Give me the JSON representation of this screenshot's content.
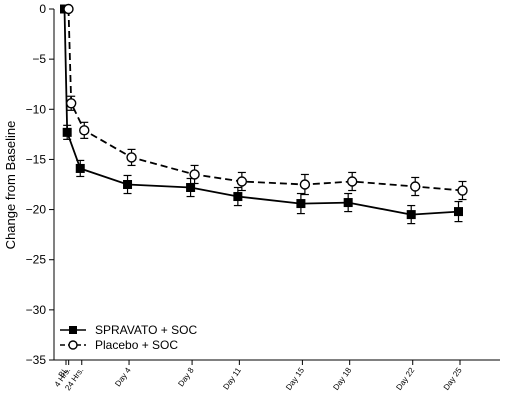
{
  "chart_data": {
    "type": "line",
    "title": "",
    "xlabel": "",
    "ylabel": "Change from Baseline",
    "ylim": [
      -35,
      0
    ],
    "yticks": [
      0,
      -5,
      -10,
      -15,
      -20,
      -25,
      -30,
      -35
    ],
    "categories": [
      "BL",
      "4 Hrs.",
      "24 Hrs.",
      "Day 4",
      "Day 8",
      "Day 11",
      "Day 15",
      "Day 18",
      "Day 22",
      "Day 25"
    ],
    "x_days": [
      0,
      0.17,
      1,
      4,
      8,
      11,
      15,
      18,
      22,
      25
    ],
    "series": [
      {
        "name": "SPRAVATO + SOC",
        "marker": "filled-square",
        "line": "solid",
        "values": [
          0,
          -12.3,
          -15.9,
          -17.5,
          -17.8,
          -18.7,
          -19.4,
          -19.3,
          -20.5,
          -20.2
        ],
        "errors": [
          0,
          0.7,
          0.8,
          0.9,
          0.9,
          0.9,
          1.0,
          0.9,
          0.9,
          1.0
        ]
      },
      {
        "name": "Placebo + SOC",
        "marker": "open-circle",
        "line": "dashed",
        "values": [
          0,
          -9.4,
          -12.1,
          -14.8,
          -16.5,
          -17.2,
          -17.5,
          -17.2,
          -17.7,
          -18.1
        ],
        "errors": [
          0,
          0.7,
          0.8,
          0.8,
          0.9,
          0.9,
          1.0,
          0.9,
          0.9,
          0.9
        ]
      }
    ],
    "legend_position": "bottom-left",
    "grid": false
  }
}
